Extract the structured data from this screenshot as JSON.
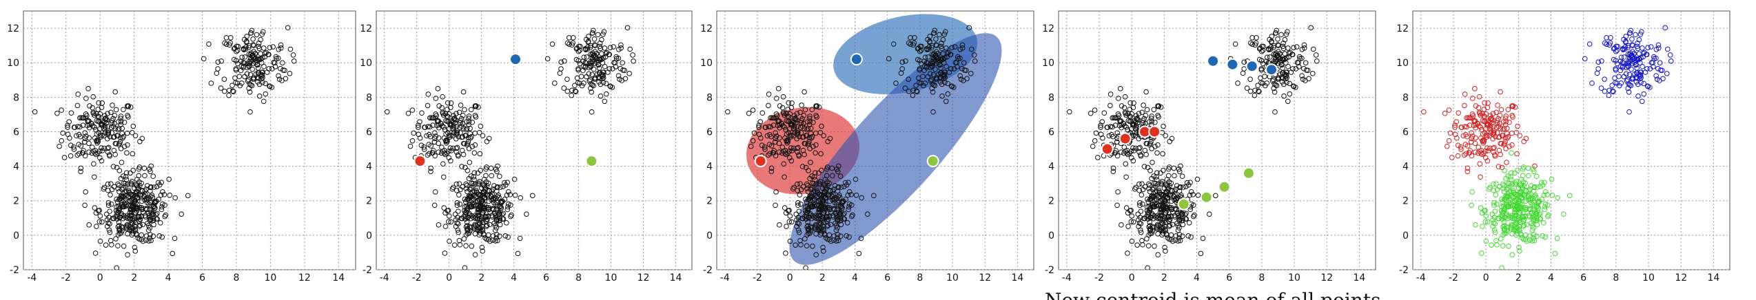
{
  "captions": {
    "top_left": "",
    "bottom": "New centroid is mean of all points"
  },
  "colors": {
    "red": "#e0301e",
    "blue": "#1f66b3",
    "green": "#8cc63e",
    "ellipse_red": "#e24b4b",
    "ellipse_blue": "#3d7bbf",
    "ellipse_navy": "#2f55b0",
    "cluster_red": "#d32020",
    "cluster_green": "#44d832",
    "cluster_blue": "#1414c8",
    "points": "#111111"
  },
  "chart_data": [
    {
      "type": "scatter",
      "xlim": [
        -4.5,
        15
      ],
      "ylim": [
        -2,
        13
      ],
      "xticks": [
        -4,
        -2,
        0,
        2,
        4,
        6,
        8,
        10,
        12,
        14
      ],
      "yticks": [
        -2,
        0,
        2,
        4,
        6,
        8,
        10,
        12
      ],
      "grid": true,
      "clusters": [
        {
          "center": [
            0,
            6
          ],
          "spread": [
            1.1,
            1.0
          ],
          "n": 200,
          "color": "points"
        },
        {
          "center": [
            2,
            1.5
          ],
          "spread": [
            1.0,
            1.0
          ],
          "n": 350,
          "color": "points"
        },
        {
          "center": [
            9,
            10
          ],
          "spread": [
            1.0,
            1.0
          ],
          "n": 180,
          "color": "points"
        }
      ],
      "centroids": [],
      "ellipses": []
    },
    {
      "type": "scatter",
      "xlim": [
        -4.5,
        15
      ],
      "ylim": [
        -2,
        13
      ],
      "xticks": [
        -4,
        -2,
        0,
        2,
        4,
        6,
        8,
        10,
        12,
        14
      ],
      "yticks": [
        -2,
        0,
        2,
        4,
        6,
        8,
        10,
        12
      ],
      "grid": true,
      "clusters": [
        {
          "center": [
            0,
            6
          ],
          "spread": [
            1.1,
            1.0
          ],
          "n": 200,
          "color": "points"
        },
        {
          "center": [
            2,
            1.5
          ],
          "spread": [
            1.0,
            1.0
          ],
          "n": 350,
          "color": "points"
        },
        {
          "center": [
            9,
            10
          ],
          "spread": [
            1.0,
            1.0
          ],
          "n": 180,
          "color": "points"
        }
      ],
      "centroids": [
        {
          "x": -1.8,
          "y": 4.3,
          "color": "red"
        },
        {
          "x": 4.1,
          "y": 10.2,
          "color": "blue"
        },
        {
          "x": 8.8,
          "y": 4.3,
          "color": "green"
        }
      ],
      "ellipses": []
    },
    {
      "type": "scatter",
      "xlim": [
        -4.5,
        15
      ],
      "ylim": [
        -2,
        13
      ],
      "xticks": [
        -4,
        -2,
        0,
        2,
        4,
        6,
        8,
        10,
        12,
        14
      ],
      "yticks": [
        -2,
        0,
        2,
        4,
        6,
        8,
        10,
        12
      ],
      "grid": true,
      "clusters": [
        {
          "center": [
            0,
            6
          ],
          "spread": [
            1.1,
            1.0
          ],
          "n": 200,
          "color": "points"
        },
        {
          "center": [
            2,
            1.5
          ],
          "spread": [
            1.0,
            1.0
          ],
          "n": 350,
          "color": "points"
        },
        {
          "center": [
            9,
            10
          ],
          "spread": [
            1.0,
            1.0
          ],
          "n": 180,
          "color": "points"
        }
      ],
      "ellipses": [
        {
          "cx": 0.8,
          "cy": 4.9,
          "rx": 3.5,
          "ry": 2.5,
          "angle": 10,
          "color": "ellipse_red",
          "opacity": 0.75
        },
        {
          "cx": 7.1,
          "cy": 10.5,
          "rx": 4.5,
          "ry": 2.2,
          "angle": 12,
          "color": "ellipse_blue",
          "opacity": 0.7
        },
        {
          "cx": 6.5,
          "cy": 5.0,
          "rx": 9.3,
          "ry": 2.5,
          "angle": 48,
          "color": "ellipse_navy",
          "opacity": 0.6
        }
      ],
      "centroids": [
        {
          "x": -1.8,
          "y": 4.3,
          "color": "red"
        },
        {
          "x": 4.1,
          "y": 10.2,
          "color": "blue"
        },
        {
          "x": 8.8,
          "y": 4.3,
          "color": "green"
        }
      ]
    },
    {
      "type": "scatter",
      "xlim": [
        -4.5,
        15
      ],
      "ylim": [
        -2,
        13
      ],
      "xticks": [
        -4,
        -2,
        0,
        2,
        4,
        6,
        8,
        10,
        12,
        14
      ],
      "yticks": [
        -2,
        0,
        2,
        4,
        6,
        8,
        10,
        12
      ],
      "grid": true,
      "clusters": [
        {
          "center": [
            0,
            6
          ],
          "spread": [
            1.1,
            1.0
          ],
          "n": 200,
          "color": "points"
        },
        {
          "center": [
            2,
            1.5
          ],
          "spread": [
            1.0,
            1.0
          ],
          "n": 350,
          "color": "points"
        },
        {
          "center": [
            9,
            10
          ],
          "spread": [
            1.0,
            1.0
          ],
          "n": 180,
          "color": "points"
        }
      ],
      "ellipses": [],
      "centroids": [
        {
          "x": -1.5,
          "y": 5.0,
          "color": "red"
        },
        {
          "x": -0.4,
          "y": 5.6,
          "color": "red"
        },
        {
          "x": 0.8,
          "y": 6.0,
          "color": "red"
        },
        {
          "x": 1.4,
          "y": 6.0,
          "color": "red"
        },
        {
          "x": 5.0,
          "y": 10.1,
          "color": "blue"
        },
        {
          "x": 6.2,
          "y": 9.9,
          "color": "blue"
        },
        {
          "x": 7.4,
          "y": 9.8,
          "color": "blue"
        },
        {
          "x": 8.6,
          "y": 9.6,
          "color": "blue"
        },
        {
          "x": 3.2,
          "y": 1.8,
          "color": "green"
        },
        {
          "x": 4.6,
          "y": 2.2,
          "color": "green"
        },
        {
          "x": 5.7,
          "y": 2.8,
          "color": "green"
        },
        {
          "x": 7.2,
          "y": 3.6,
          "color": "green"
        }
      ]
    },
    {
      "type": "scatter",
      "xlim": [
        -4.5,
        15
      ],
      "ylim": [
        -2,
        13
      ],
      "xticks": [
        -4,
        -2,
        0,
        2,
        4,
        6,
        8,
        10,
        12,
        14
      ],
      "yticks": [
        -2,
        0,
        2,
        4,
        6,
        8,
        10,
        12
      ],
      "grid": true,
      "clusters": [
        {
          "center": [
            0,
            6
          ],
          "spread": [
            1.1,
            1.0
          ],
          "n": 200,
          "color": "cluster_red"
        },
        {
          "center": [
            2,
            1.5
          ],
          "spread": [
            1.0,
            1.0
          ],
          "n": 350,
          "color": "cluster_green"
        },
        {
          "center": [
            9,
            10
          ],
          "spread": [
            1.0,
            1.0
          ],
          "n": 180,
          "color": "cluster_blue"
        }
      ],
      "centroids": [],
      "ellipses": []
    }
  ]
}
